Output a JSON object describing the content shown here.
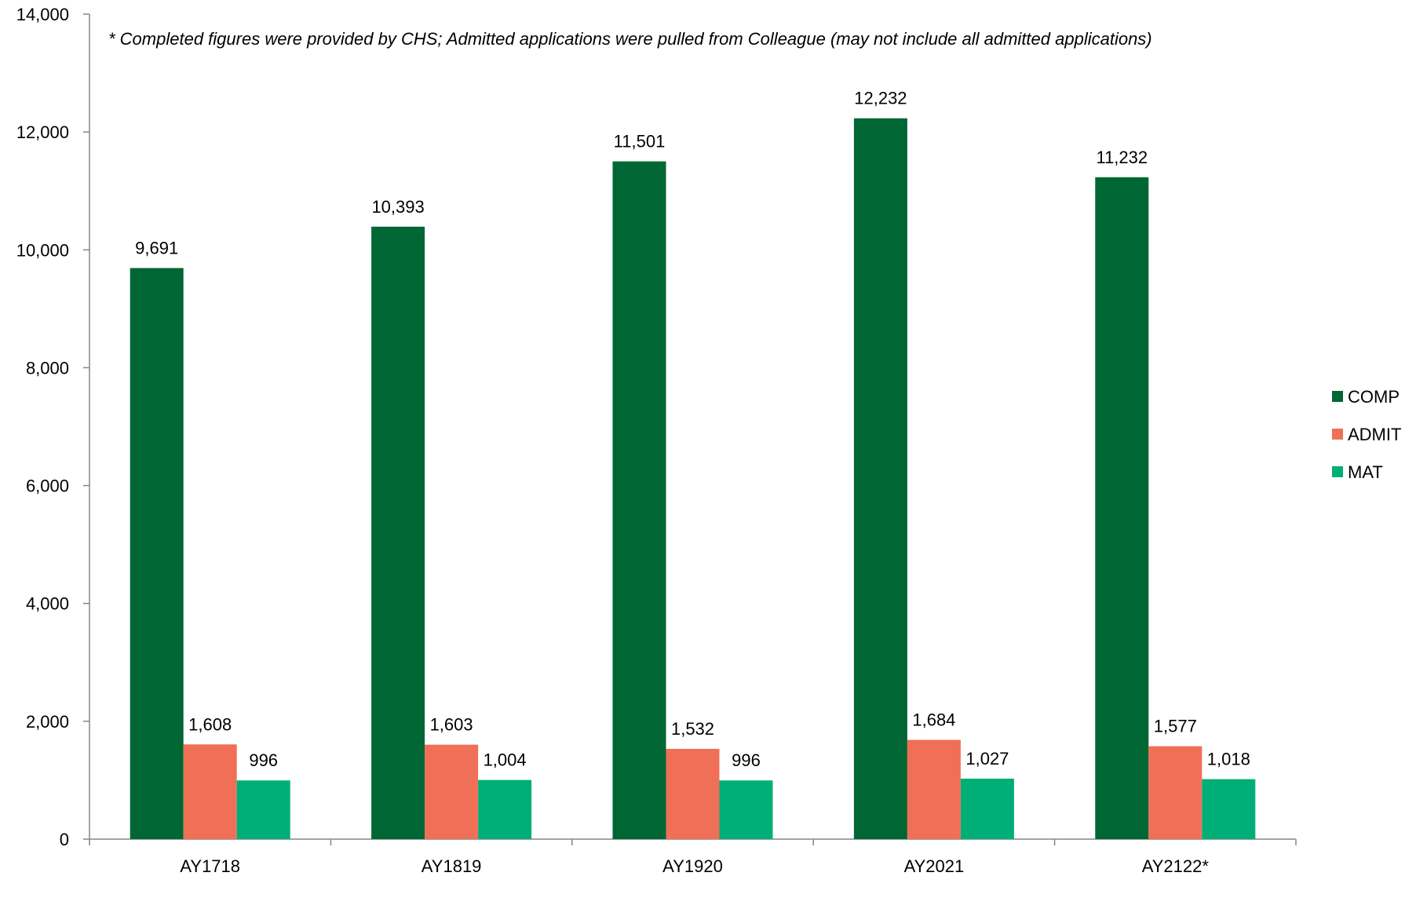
{
  "chart_data": {
    "type": "bar",
    "title": "",
    "annotation": "* Completed figures were provided by CHS; Admitted applications were pulled from Colleague (may not include all admitted applications)",
    "xlabel": "",
    "ylabel": "",
    "categories": [
      "AY1718",
      "AY1819",
      "AY1920",
      "AY2021",
      "AY2122*"
    ],
    "series": [
      {
        "name": "COMP",
        "color": "#006633",
        "values": [
          9691,
          10393,
          11501,
          12232,
          11232
        ],
        "labels": [
          "9,691",
          "10,393",
          "11,501",
          "12,232",
          "11,232"
        ]
      },
      {
        "name": "ADMIT",
        "color": "#F07057",
        "values": [
          1608,
          1603,
          1532,
          1684,
          1577
        ],
        "labels": [
          "1,608",
          "1,603",
          "1,532",
          "1,684",
          "1,577"
        ]
      },
      {
        "name": "MAT",
        "color": "#00AF78",
        "values": [
          996,
          1004,
          996,
          1027,
          1018
        ],
        "labels": [
          "996",
          "1,004",
          "996",
          "1,027",
          "1,018"
        ]
      }
    ],
    "ylim": [
      0,
      14000
    ],
    "yticks": [
      0,
      2000,
      4000,
      6000,
      8000,
      10000,
      12000,
      14000
    ],
    "ytick_labels": [
      "0",
      "2,000",
      "4,000",
      "6,000",
      "8,000",
      "10,000",
      "12,000",
      "14,000"
    ],
    "grid": false,
    "legend_position": "right"
  }
}
